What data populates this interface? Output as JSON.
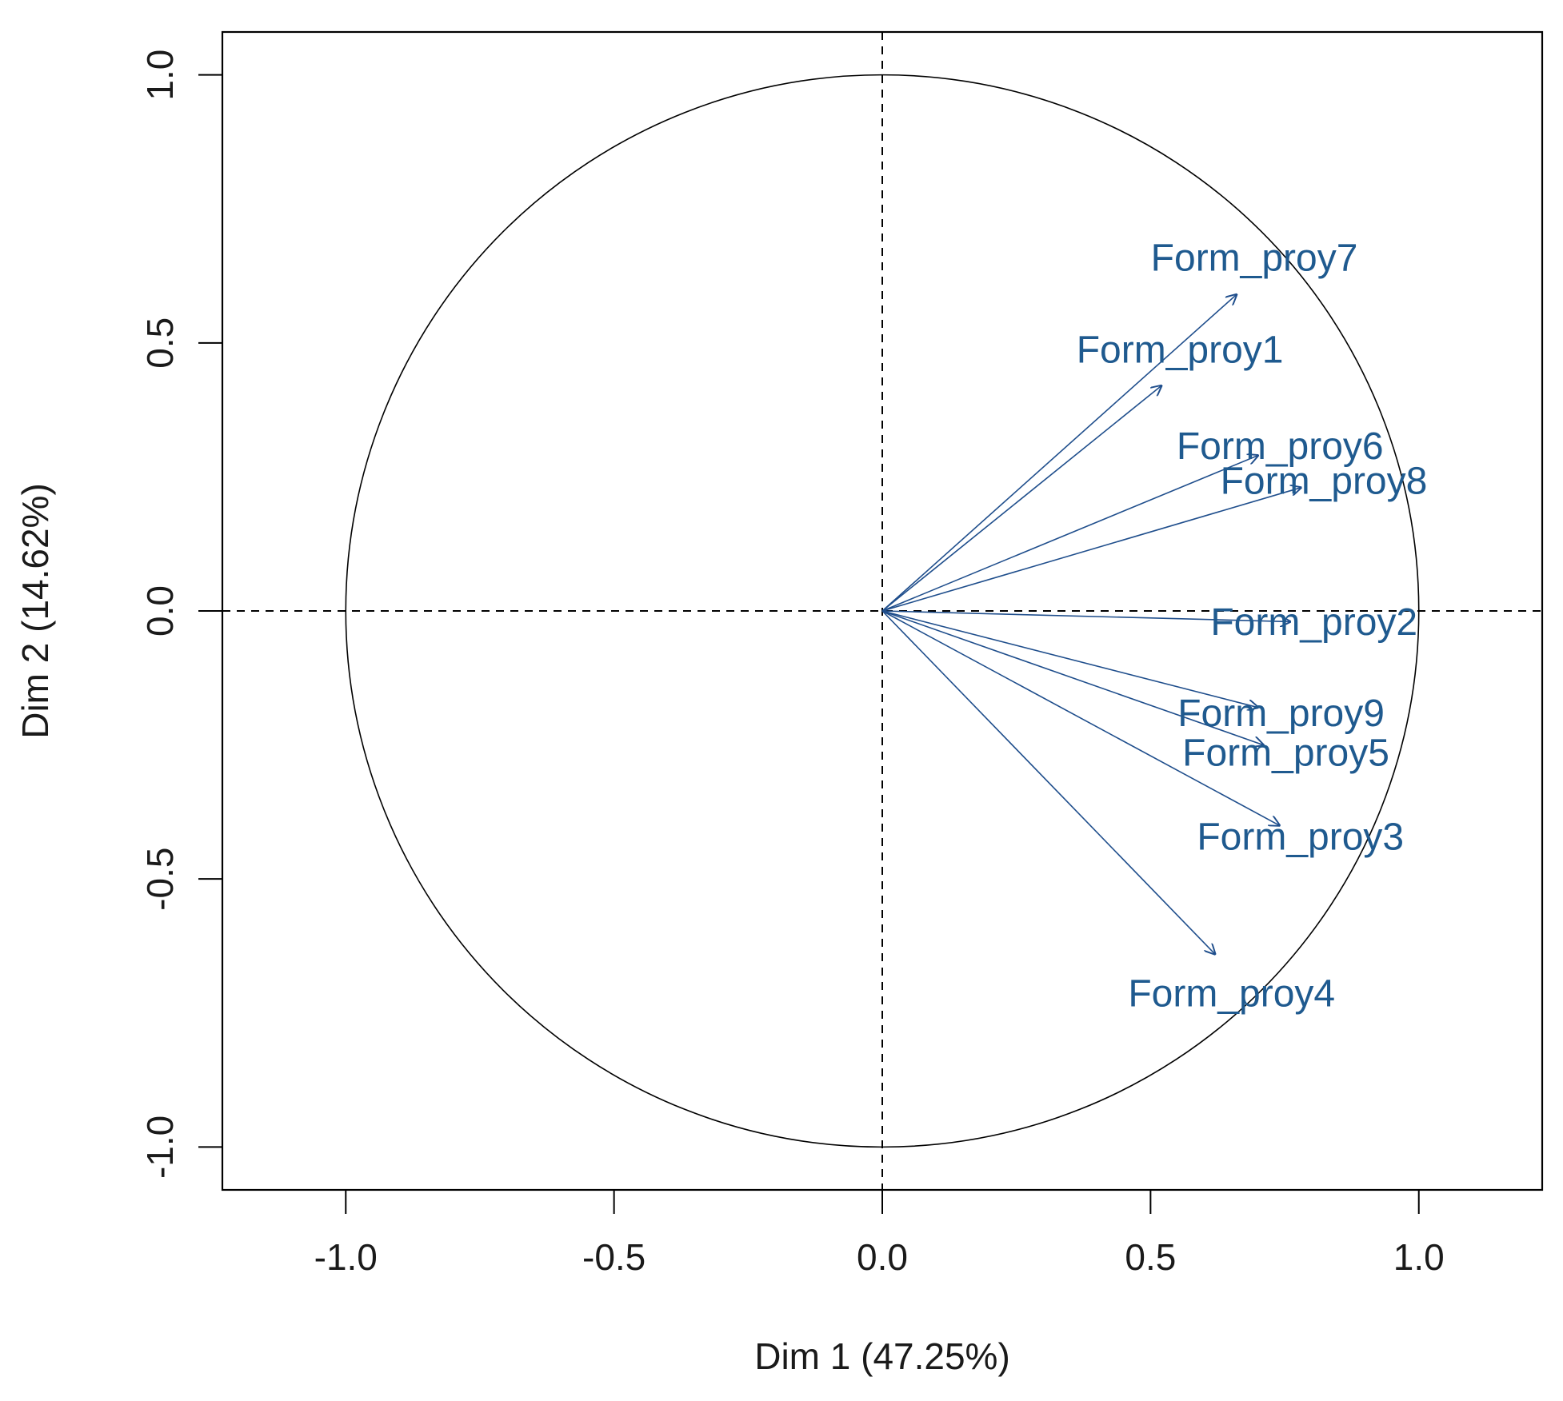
{
  "chart_data": {
    "type": "scatter",
    "subtype": "pca-correlation-circle",
    "title": "",
    "xlabel": "Dim 1 (47.25%)",
    "ylabel": "Dim 2 (14.62%)",
    "xlim": [
      -1.23,
      1.23
    ],
    "ylim": [
      -1.08,
      1.08
    ],
    "xticks": [
      -1.0,
      -0.5,
      0.0,
      0.5,
      1.0
    ],
    "yticks": [
      -1.0,
      -0.5,
      0.0,
      0.5,
      1.0
    ],
    "xtick_labels": [
      "-1.0",
      "-0.5",
      "0.0",
      "0.5",
      "1.0"
    ],
    "ytick_labels": [
      "-1.0",
      "-0.5",
      "0.0",
      "0.5",
      "1.0"
    ],
    "grid": false,
    "reference_lines": {
      "x0": true,
      "y0": true,
      "style": "dashed"
    },
    "unit_circle": true,
    "arrow_color": "#1f4e8c",
    "label_color": "#1f5a8f",
    "variables": [
      {
        "name": "Form_proy7",
        "x": 0.66,
        "y": 0.59
      },
      {
        "name": "Form_proy1",
        "x": 0.52,
        "y": 0.42
      },
      {
        "name": "Form_proy6",
        "x": 0.7,
        "y": 0.29
      },
      {
        "name": "Form_proy8",
        "x": 0.78,
        "y": 0.23
      },
      {
        "name": "Form_proy2",
        "x": 0.76,
        "y": -0.02
      },
      {
        "name": "Form_proy9",
        "x": 0.7,
        "y": -0.18
      },
      {
        "name": "Form_proy5",
        "x": 0.71,
        "y": -0.25
      },
      {
        "name": "Form_proy3",
        "x": 0.74,
        "y": -0.4
      },
      {
        "name": "Form_proy4",
        "x": 0.62,
        "y": -0.64
      }
    ]
  }
}
